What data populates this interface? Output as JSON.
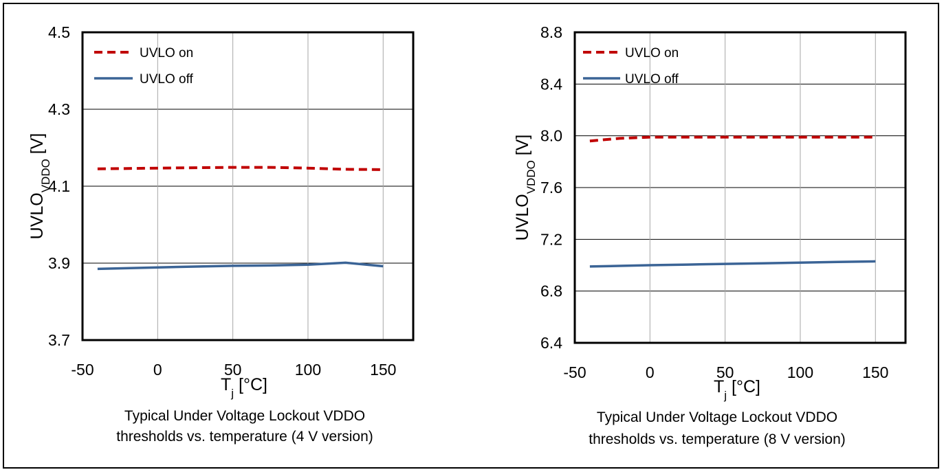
{
  "chart_data": [
    {
      "type": "line",
      "caption_lines": [
        "Typical Under Voltage Lockout VDDO",
        "thresholds vs. temperature (4 V version)"
      ],
      "ylabel": {
        "main": "UVLO",
        "sub": "VDDO",
        "unit": " [V]"
      },
      "xlabel": {
        "main": "T",
        "sub": "j",
        "unit": " [°C]"
      },
      "xlim": [
        -50,
        170
      ],
      "ylim": [
        3.7,
        4.5
      ],
      "xticks": [
        -50,
        0,
        50,
        100,
        150
      ],
      "yticks": [
        3.7,
        3.9,
        4.1,
        4.3,
        4.5
      ],
      "ytick_labels": [
        "3.7",
        "3.9",
        "4.1",
        "4.3",
        "4.5"
      ],
      "legend_position": "top-left",
      "series": [
        {
          "name": "UVLO on",
          "color": "#c00000",
          "style": "dashed",
          "x": [
            -40,
            0,
            25,
            50,
            75,
            100,
            125,
            150
          ],
          "y": [
            4.145,
            4.147,
            4.148,
            4.149,
            4.149,
            4.147,
            4.144,
            4.143
          ]
        },
        {
          "name": "UVLO off",
          "color": "#3b6496",
          "style": "solid",
          "x": [
            -40,
            0,
            25,
            50,
            75,
            100,
            125,
            150
          ],
          "y": [
            3.885,
            3.889,
            3.891,
            3.893,
            3.894,
            3.896,
            3.901,
            3.892
          ]
        }
      ]
    },
    {
      "type": "line",
      "caption_lines": [
        "Typical Under Voltage Lockout VDDO",
        "thresholds vs. temperature (8 V version)"
      ],
      "ylabel": {
        "main": "UVLO",
        "sub": "VDDO",
        "unit": " [V]"
      },
      "xlabel": {
        "main": "T",
        "sub": "j",
        "unit": " [°C]"
      },
      "xlim": [
        -50,
        170
      ],
      "ylim": [
        6.4,
        8.8
      ],
      "xticks": [
        -50,
        0,
        50,
        100,
        150
      ],
      "yticks": [
        6.4,
        6.8,
        7.2,
        7.6,
        8.0,
        8.4,
        8.8
      ],
      "ytick_labels": [
        "6.4",
        "6.8",
        "7.2",
        "7.6",
        "8.0",
        "8.4",
        "8.8"
      ],
      "legend_position": "top-left",
      "series": [
        {
          "name": "UVLO on",
          "color": "#c00000",
          "style": "dashed",
          "x": [
            -40,
            -20,
            0,
            25,
            50,
            75,
            100,
            125,
            150
          ],
          "y": [
            7.96,
            7.98,
            7.99,
            7.99,
            7.99,
            7.99,
            7.99,
            7.99,
            7.99
          ]
        },
        {
          "name": "UVLO off",
          "color": "#3b6496",
          "style": "solid",
          "x": [
            -40,
            0,
            25,
            50,
            75,
            100,
            125,
            150
          ],
          "y": [
            6.99,
            7.0,
            7.005,
            7.01,
            7.015,
            7.02,
            7.025,
            7.03
          ]
        }
      ]
    }
  ]
}
